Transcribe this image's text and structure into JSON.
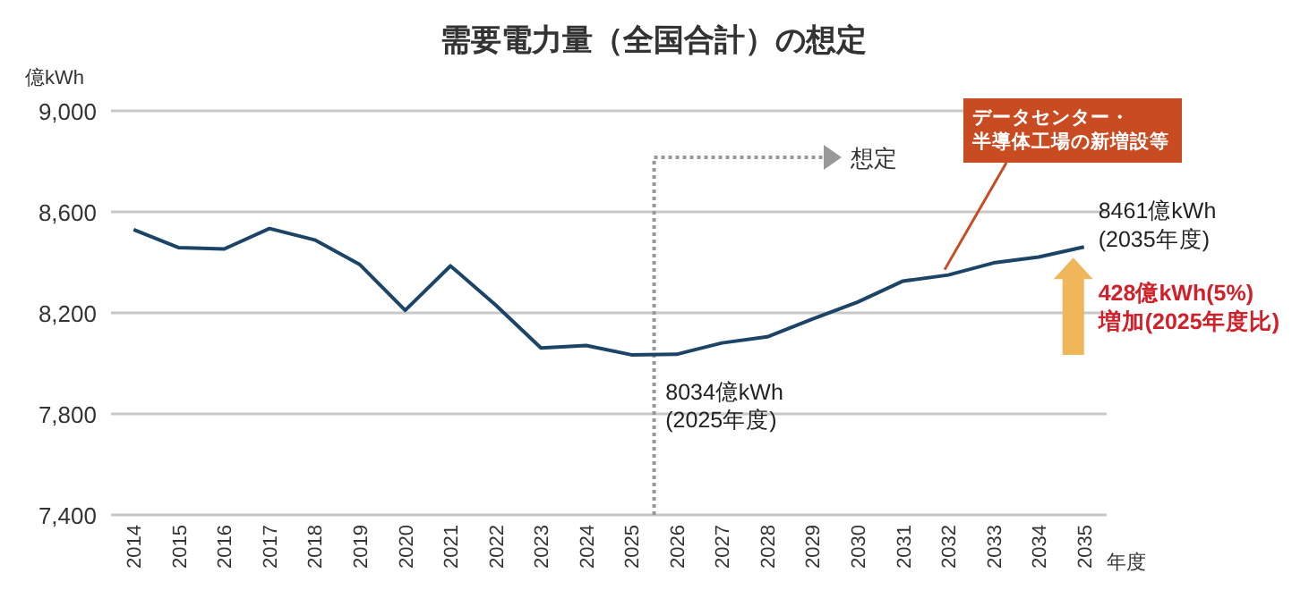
{
  "chart_data": {
    "type": "line",
    "title": "需要電力量（全国合計）の想定",
    "ylabel": "億kWh",
    "xlabel": "年度",
    "categories": [
      "2014",
      "2015",
      "2016",
      "2017",
      "2018",
      "2019",
      "2020",
      "2021",
      "2022",
      "2023",
      "2024",
      "2025",
      "2026",
      "2027",
      "2028",
      "2029",
      "2030",
      "2031",
      "2032",
      "2033",
      "2034",
      "2035"
    ],
    "series": [
      {
        "color": "#1b4466",
        "values": [
          8530,
          8458,
          8453,
          8534,
          8489,
          8391,
          8210,
          8386,
          8231,
          8061,
          8071,
          8034,
          8036,
          8081,
          8105,
          8176,
          8243,
          8326,
          8350,
          8398,
          8421,
          8461
        ]
      }
    ],
    "ylim": [
      7400,
      9000
    ],
    "yticks": [
      {
        "value": 7400,
        "label": "7,400"
      },
      {
        "value": 7800,
        "label": "7,800"
      },
      {
        "value": 8200,
        "label": "8,200"
      },
      {
        "value": 8600,
        "label": "8,600"
      },
      {
        "value": 9000,
        "label": "9,000"
      }
    ],
    "grid": "y",
    "marker": "none",
    "line_style": "solid",
    "annotations": [
      {
        "text": "8034億kWh\n(2025年度)",
        "x": "2025",
        "y": 8034
      },
      {
        "text": "8461億kWh\n(2035年度)",
        "x": "2035",
        "y": 8461
      },
      {
        "text": "428億kWh(5%)\n増加(2025年度比)",
        "x": "2035",
        "y": 8461
      },
      {
        "text": "データセンター・半導体工場の新増設等",
        "x": "2032",
        "y": 8350
      },
      "想定"
    ]
  }
}
